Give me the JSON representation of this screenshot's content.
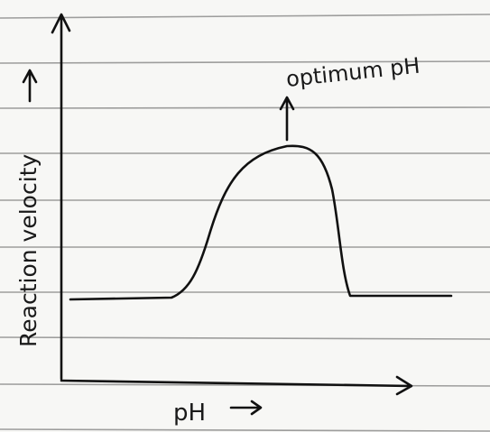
{
  "axes": {
    "x_label": "pH",
    "y_label": "Reaction velocity"
  },
  "annotation": "optimum pH"
}
